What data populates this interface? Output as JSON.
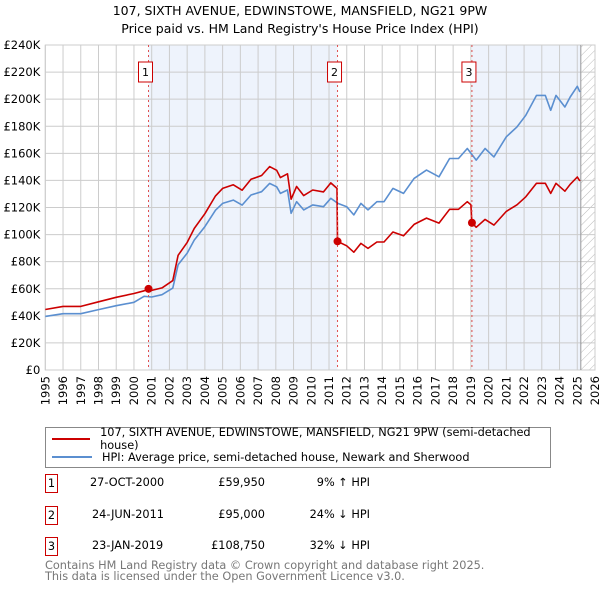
{
  "chart_data": {
    "type": "line",
    "title": "107, SIXTH AVENUE, EDWINSTOWE, MANSFIELD, NG21 9PW",
    "subtitle": "Price paid vs. HM Land Registry's House Price Index (HPI)",
    "xlim": [
      1995,
      2026
    ],
    "ylim": [
      0,
      240000
    ],
    "x_ticks": [
      "1995",
      "1996",
      "1997",
      "1998",
      "1999",
      "2000",
      "2001",
      "2002",
      "2003",
      "2004",
      "2005",
      "2006",
      "2007",
      "2008",
      "2009",
      "2010",
      "2011",
      "2012",
      "2013",
      "2014",
      "2015",
      "2016",
      "2017",
      "2018",
      "2019",
      "2020",
      "2021",
      "2022",
      "2023",
      "2024",
      "2025",
      "2026"
    ],
    "y_ticks": [
      {
        "value": 0,
        "label": "£0"
      },
      {
        "value": 20000,
        "label": "£20K"
      },
      {
        "value": 40000,
        "label": "£40K"
      },
      {
        "value": 60000,
        "label": "£60K"
      },
      {
        "value": 80000,
        "label": "£80K"
      },
      {
        "value": 100000,
        "label": "£100K"
      },
      {
        "value": 120000,
        "label": "£120K"
      },
      {
        "value": 140000,
        "label": "£140K"
      },
      {
        "value": 160000,
        "label": "£160K"
      },
      {
        "value": 180000,
        "label": "£180K"
      },
      {
        "value": 200000,
        "label": "£200K"
      },
      {
        "value": 220000,
        "label": "£220K"
      },
      {
        "value": 240000,
        "label": "£240K"
      }
    ],
    "grid": true,
    "shaded_ranges": [
      [
        2000.82,
        2011.48
      ],
      [
        2019.06,
        2025.2
      ]
    ],
    "forecast_hatch_from": 2025.2,
    "colors": {
      "price": "#cc0000",
      "hpi": "#5b8fd0",
      "shade": "#eef3fc",
      "grid": "#cccccc"
    },
    "series": [
      {
        "name": "107, SIXTH AVENUE, EDWINSTOWE, MANSFIELD, NG21 9PW (semi-detached house)",
        "color": "#cc0000",
        "points": [
          [
            1995,
            44700
          ],
          [
            1996,
            47000
          ],
          [
            1997,
            47000
          ],
          [
            1998,
            50400
          ],
          [
            1999,
            53700
          ],
          [
            2000,
            56500
          ],
          [
            2000.57,
            58500
          ],
          [
            2000.82,
            59950
          ],
          [
            2001,
            58800
          ],
          [
            2001.58,
            60600
          ],
          [
            2002.19,
            66000
          ],
          [
            2002.49,
            84700
          ],
          [
            2003,
            94200
          ],
          [
            2003.4,
            104600
          ],
          [
            2004,
            115400
          ],
          [
            2004.6,
            128600
          ],
          [
            2005,
            134100
          ],
          [
            2005.6,
            136800
          ],
          [
            2006.1,
            132800
          ],
          [
            2006.6,
            140800
          ],
          [
            2007.2,
            143600
          ],
          [
            2007.65,
            150200
          ],
          [
            2008.05,
            147500
          ],
          [
            2008.26,
            142100
          ],
          [
            2008.66,
            144900
          ],
          [
            2008.86,
            126100
          ],
          [
            2009.17,
            135500
          ],
          [
            2009.57,
            128800
          ],
          [
            2010.08,
            132900
          ],
          [
            2010.69,
            131500
          ],
          [
            2011.1,
            138200
          ],
          [
            2011.45,
            134100
          ],
          [
            2011.48,
            95000
          ],
          [
            2012,
            91700
          ],
          [
            2012.4,
            87000
          ],
          [
            2012.8,
            93500
          ],
          [
            2013.2,
            89800
          ],
          [
            2013.7,
            94500
          ],
          [
            2014.1,
            94500
          ],
          [
            2014.6,
            101900
          ],
          [
            2015.2,
            99100
          ],
          [
            2015.8,
            107500
          ],
          [
            2016.5,
            112200
          ],
          [
            2017.2,
            108500
          ],
          [
            2017.8,
            118700
          ],
          [
            2018.3,
            118700
          ],
          [
            2018.8,
            124300
          ],
          [
            2019.0,
            122000
          ],
          [
            2019.06,
            108750
          ],
          [
            2019.3,
            105400
          ],
          [
            2019.8,
            111200
          ],
          [
            2020.3,
            107000
          ],
          [
            2021,
            117100
          ],
          [
            2021.6,
            122000
          ],
          [
            2022.1,
            127900
          ],
          [
            2022.7,
            137900
          ],
          [
            2023.2,
            137900
          ],
          [
            2023.5,
            130400
          ],
          [
            2023.8,
            137900
          ],
          [
            2024.3,
            132000
          ],
          [
            2024.6,
            137100
          ],
          [
            2025,
            142500
          ],
          [
            2025.15,
            139600
          ]
        ]
      },
      {
        "name": "HPI: Average price, semi-detached house, Newark and Sherwood",
        "color": "#5b8fd0",
        "points": [
          [
            1995,
            39600
          ],
          [
            1996,
            41600
          ],
          [
            1997,
            41600
          ],
          [
            1998,
            44600
          ],
          [
            1999,
            47500
          ],
          [
            2000,
            50000
          ],
          [
            2000.57,
            54400
          ],
          [
            2001,
            53900
          ],
          [
            2001.58,
            55600
          ],
          [
            2002.19,
            60500
          ],
          [
            2002.49,
            77700
          ],
          [
            2003,
            86300
          ],
          [
            2003.4,
            96000
          ],
          [
            2004,
            105900
          ],
          [
            2004.6,
            118000
          ],
          [
            2005,
            123000
          ],
          [
            2005.6,
            125500
          ],
          [
            2006.1,
            121800
          ],
          [
            2006.6,
            129200
          ],
          [
            2007.2,
            131700
          ],
          [
            2007.65,
            137800
          ],
          [
            2008.05,
            135300
          ],
          [
            2008.26,
            130400
          ],
          [
            2008.66,
            132900
          ],
          [
            2008.86,
            115700
          ],
          [
            2009.17,
            124300
          ],
          [
            2009.57,
            118200
          ],
          [
            2010.08,
            121900
          ],
          [
            2010.69,
            120600
          ],
          [
            2011.1,
            126800
          ],
          [
            2011.5,
            123000
          ],
          [
            2012,
            120600
          ],
          [
            2012.4,
            114500
          ],
          [
            2012.8,
            123000
          ],
          [
            2013.2,
            118200
          ],
          [
            2013.7,
            124300
          ],
          [
            2014.1,
            124300
          ],
          [
            2014.6,
            134100
          ],
          [
            2015.2,
            130400
          ],
          [
            2015.8,
            141500
          ],
          [
            2016.5,
            147600
          ],
          [
            2017.2,
            142700
          ],
          [
            2017.8,
            156200
          ],
          [
            2018.3,
            156200
          ],
          [
            2018.8,
            163600
          ],
          [
            2019.3,
            155000
          ],
          [
            2019.8,
            163600
          ],
          [
            2020.3,
            157400
          ],
          [
            2021,
            172200
          ],
          [
            2021.6,
            179500
          ],
          [
            2022.1,
            188100
          ],
          [
            2022.7,
            202800
          ],
          [
            2023.2,
            202800
          ],
          [
            2023.5,
            191800
          ],
          [
            2023.8,
            202800
          ],
          [
            2024.3,
            194200
          ],
          [
            2024.6,
            201600
          ],
          [
            2025,
            209500
          ],
          [
            2025.15,
            205300
          ]
        ]
      }
    ],
    "sales": [
      {
        "label": "1",
        "x": 2000.82,
        "value": 59950
      },
      {
        "label": "2",
        "x": 2011.48,
        "value": 95000
      },
      {
        "label": "3",
        "x": 2019.06,
        "value": 108750
      }
    ]
  },
  "legend": {
    "price_label": "107, SIXTH AVENUE, EDWINSTOWE, MANSFIELD, NG21 9PW (semi-detached house)",
    "hpi_label": "HPI: Average price, semi-detached house, Newark and Sherwood"
  },
  "transactions": [
    {
      "num": "1",
      "date": "27-OCT-2000",
      "price": "£59,950",
      "hpi": "9% ↑ HPI"
    },
    {
      "num": "2",
      "date": "24-JUN-2011",
      "price": "£95,000",
      "hpi": "24% ↓ HPI"
    },
    {
      "num": "3",
      "date": "23-JAN-2019",
      "price": "£108,750",
      "hpi": "32% ↓ HPI"
    }
  ],
  "footer": {
    "line1": "Contains HM Land Registry data © Crown copyright and database right 2025.",
    "line2": "This data is licensed under the Open Government Licence v3.0."
  }
}
